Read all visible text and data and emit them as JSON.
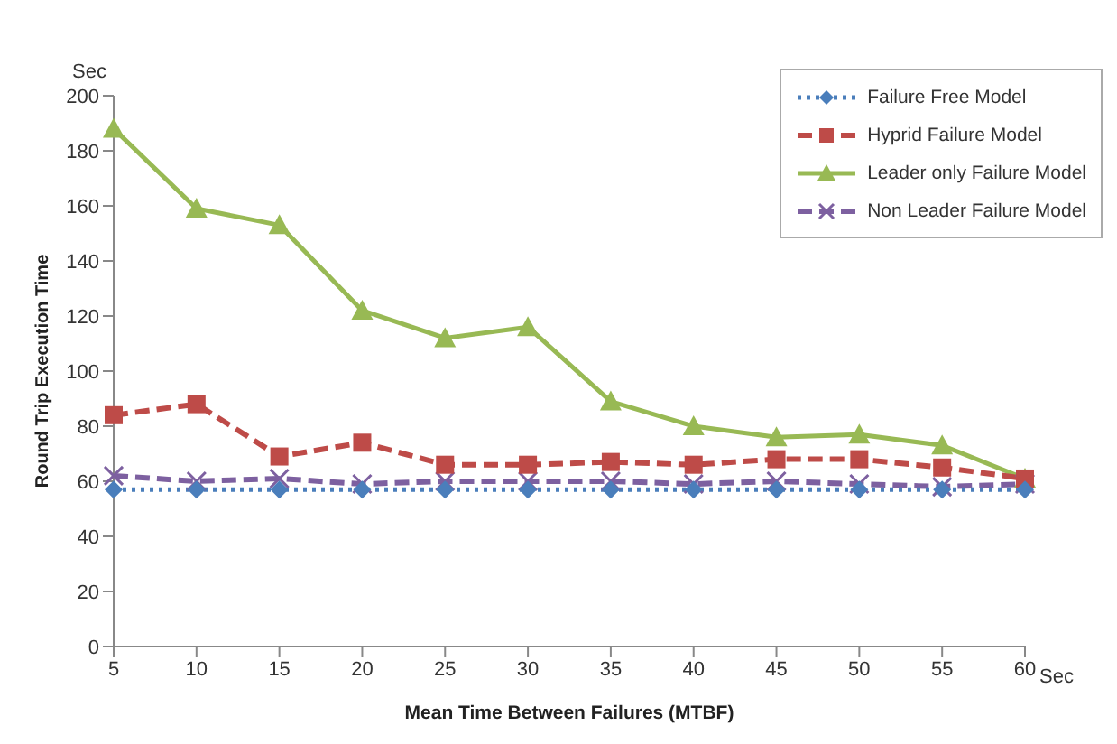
{
  "chart_data": {
    "type": "line",
    "xlabel": "Mean Time Between Failures (MTBF)",
    "ylabel": "Round Trip Execution Time",
    "annotations": [
      "Sec",
      "Sec"
    ],
    "categories": [
      "5",
      "10",
      "15",
      "20",
      "25",
      "30",
      "35",
      "40",
      "45",
      "50",
      "55",
      "60"
    ],
    "ylim": [
      0,
      200
    ],
    "yticks": [
      0,
      20,
      40,
      60,
      80,
      100,
      120,
      140,
      160,
      180,
      200
    ],
    "grid": false,
    "legend": "top right",
    "series": [
      {
        "name": "Failure Free Model",
        "color": "#4a7ebb",
        "marker": "diamond",
        "line_style": "dotted",
        "values": [
          57,
          57,
          57,
          57,
          57,
          57,
          57,
          57,
          57,
          57,
          57,
          57
        ]
      },
      {
        "name": "Hyprid Failure Model",
        "color": "#be4b48",
        "marker": "square",
        "line_style": "dashed",
        "values": [
          84,
          88,
          69,
          74,
          66,
          66,
          67,
          66,
          68,
          68,
          65,
          61
        ]
      },
      {
        "name": "Leader only Failure Model",
        "color": "#98b954",
        "marker": "triangle",
        "line_style": "solid",
        "values": [
          188,
          159,
          153,
          122,
          112,
          116,
          89,
          80,
          76,
          77,
          73,
          61
        ]
      },
      {
        "name": "Non Leader Failure Model",
        "color": "#7d60a0",
        "marker": "cross",
        "line_style": "dashed",
        "values": [
          62,
          60,
          61,
          59,
          60,
          60,
          60,
          59,
          60,
          59,
          58,
          59
        ]
      }
    ]
  }
}
